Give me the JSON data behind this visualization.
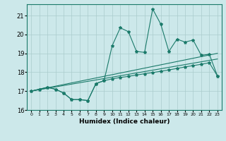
{
  "xlabel": "Humidex (Indice chaleur)",
  "background_color": "#cce8ea",
  "grid_color": "#aacccc",
  "line_color": "#1a7a6a",
  "xlim": [
    -0.5,
    23.5
  ],
  "ylim": [
    16.0,
    21.6
  ],
  "yticks": [
    16,
    17,
    18,
    19,
    20,
    21
  ],
  "xticks": [
    0,
    1,
    2,
    3,
    4,
    5,
    6,
    7,
    8,
    9,
    10,
    11,
    12,
    13,
    14,
    15,
    16,
    17,
    18,
    19,
    20,
    21,
    22,
    23
  ],
  "series1_x": [
    0,
    1,
    2,
    3,
    4,
    5,
    6,
    7,
    8,
    9,
    10,
    11,
    12,
    13,
    14,
    15,
    16,
    17,
    18,
    19,
    20,
    21,
    22,
    23
  ],
  "series1_y": [
    17.0,
    17.1,
    17.2,
    17.1,
    16.9,
    16.55,
    16.55,
    16.5,
    17.4,
    17.55,
    19.4,
    20.35,
    20.15,
    19.1,
    19.05,
    21.35,
    20.55,
    19.1,
    19.75,
    19.6,
    19.7,
    18.9,
    18.95,
    17.8
  ],
  "series2_x": [
    0,
    23
  ],
  "series2_y": [
    17.0,
    19.0
  ],
  "series3_x": [
    0,
    23
  ],
  "series3_y": [
    17.0,
    18.7
  ],
  "series4_x": [
    0,
    1,
    2,
    3,
    4,
    5,
    6,
    7,
    8,
    9,
    10,
    11,
    12,
    13,
    14,
    15,
    16,
    17,
    18,
    19,
    20,
    21,
    22,
    23
  ],
  "series4_y": [
    17.0,
    17.1,
    17.2,
    17.1,
    16.9,
    16.55,
    16.55,
    16.5,
    17.4,
    17.55,
    17.65,
    17.72,
    17.78,
    17.85,
    17.92,
    17.98,
    18.05,
    18.12,
    18.2,
    18.28,
    18.35,
    18.42,
    18.5,
    17.8
  ]
}
